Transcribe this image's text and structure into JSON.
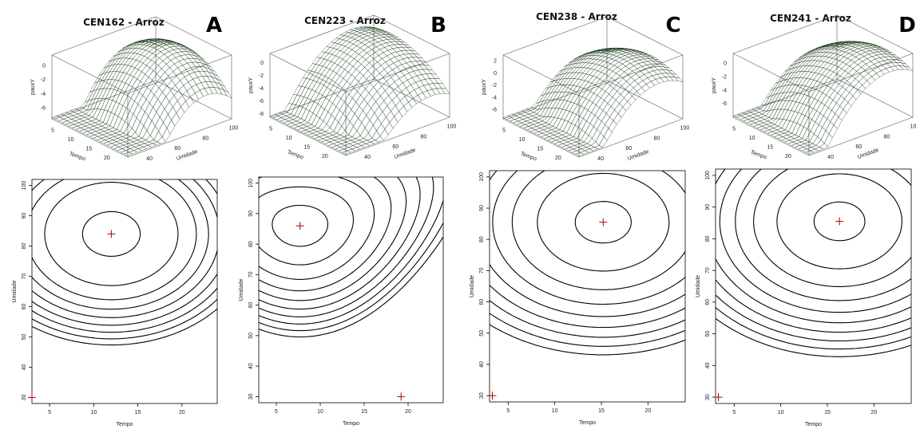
{
  "panels": [
    {
      "title": "CEN162 - Arroz",
      "letter": "A"
    },
    {
      "title": "CEN223 - Arroz",
      "letter": "B"
    },
    {
      "title": "CEN238 - Arroz",
      "letter": "C"
    },
    {
      "title": "CEN241 - Arroz",
      "letter": "D"
    }
  ],
  "colors": {
    "surface": "#4e9a4a",
    "surface_dark": "#2c5e2a",
    "optimum_marker": "#b00000",
    "contour": "#000000"
  },
  "chart_data": [
    {
      "type": "surface+contour",
      "title": "CEN162 - Arroz",
      "surface": {
        "xlabel": "Tempo",
        "ylabel": "Umidade",
        "zlabel": "pauxY",
        "x_ticks": [
          5,
          10,
          15,
          20
        ],
        "y_ticks": [
          40,
          60,
          80,
          100
        ],
        "z_ticks": [
          0,
          -2,
          -4,
          -6
        ]
      },
      "contour": {
        "xlabel": "Tempo",
        "ylabel": "Umidade",
        "xlim": [
          3,
          24
        ],
        "ylim": [
          28,
          102
        ],
        "x_ticks": [
          5,
          10,
          15,
          20
        ],
        "y_ticks": [
          30,
          40,
          50,
          60,
          70,
          80,
          90,
          100
        ],
        "optimum": [
          12,
          84
        ],
        "corner_marker": [
          3,
          30
        ]
      }
    },
    {
      "type": "surface+contour",
      "title": "CEN223 - Arroz",
      "surface": {
        "xlabel": "Tempo",
        "ylabel": "Umidade",
        "zlabel": "pauxY",
        "x_ticks": [
          5,
          10,
          15,
          20
        ],
        "y_ticks": [
          40,
          60,
          80,
          100
        ],
        "z_ticks": [
          0,
          -2,
          -4,
          -6,
          -8
        ]
      },
      "contour": {
        "xlabel": "Tempo",
        "ylabel": "Umidade",
        "xlim": [
          3,
          24
        ],
        "ylim": [
          28,
          102
        ],
        "x_ticks": [
          5,
          10,
          15,
          20
        ],
        "y_ticks": [
          30,
          40,
          50,
          60,
          70,
          80,
          90,
          100
        ],
        "optimum": [
          7.7,
          86
        ],
        "corner_marker": [
          19.2,
          30
        ]
      }
    },
    {
      "type": "surface+contour",
      "title": "CEN238 - Arroz",
      "surface": {
        "xlabel": "Tempo",
        "ylabel": "Umidade",
        "zlabel": "pauxY",
        "x_ticks": [
          5,
          10,
          15,
          20
        ],
        "y_ticks": [
          40,
          60,
          80,
          100
        ],
        "z_ticks": [
          2,
          0,
          -2,
          -4,
          -6
        ]
      },
      "contour": {
        "xlabel": "Tempo",
        "ylabel": "Umidade",
        "xlim": [
          3,
          24
        ],
        "ylim": [
          28,
          102
        ],
        "x_ticks": [
          5,
          10,
          15,
          20
        ],
        "y_ticks": [
          30,
          40,
          50,
          60,
          70,
          80,
          90,
          100
        ],
        "optimum": [
          15.2,
          85.5
        ],
        "corner_marker": [
          3.3,
          30
        ]
      }
    },
    {
      "type": "surface+contour",
      "title": "CEN241 - Arroz",
      "surface": {
        "xlabel": "Tempo",
        "ylabel": "Umidade",
        "zlabel": "pauxY",
        "x_ticks": [
          5,
          10,
          15,
          20
        ],
        "y_ticks": [
          40,
          60,
          80,
          100
        ],
        "z_ticks": [
          0,
          -2,
          -4,
          -6
        ]
      },
      "contour": {
        "xlabel": "Tempo",
        "ylabel": "Umidade",
        "xlim": [
          3,
          24
        ],
        "ylim": [
          28,
          102
        ],
        "x_ticks": [
          5,
          10,
          15,
          20
        ],
        "y_ticks": [
          30,
          40,
          50,
          60,
          70,
          80,
          90,
          100
        ],
        "optimum": [
          16.3,
          85.5
        ],
        "corner_marker": [
          3.3,
          30
        ]
      }
    }
  ]
}
